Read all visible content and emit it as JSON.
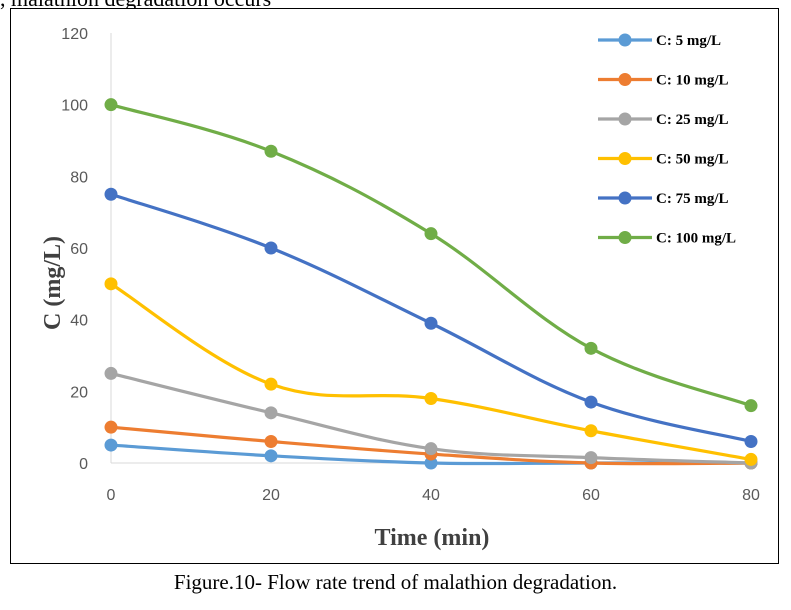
{
  "header_fragment": ", malathion degradation occurs",
  "caption": "Figure.10- Flow rate trend of malathion degradation.",
  "chart_data": {
    "type": "line",
    "title": "",
    "xlabel": "Time (min)",
    "ylabel": "C (mg/L)",
    "x": [
      0,
      20,
      40,
      60,
      80
    ],
    "xlim": [
      0,
      80
    ],
    "ylim": [
      0,
      120
    ],
    "x_ticks": [
      "0",
      "20",
      "40",
      "60",
      "80"
    ],
    "y_ticks": [
      "0",
      "20",
      "40",
      "60",
      "80",
      "100",
      "120"
    ],
    "grid": false,
    "legend_position": "top-right",
    "series": [
      {
        "name": "C: 5 mg/L",
        "color": "#5B9BD5",
        "values": [
          5,
          2,
          0,
          0,
          0
        ]
      },
      {
        "name": "C: 10 mg/L",
        "color": "#ED7D31",
        "values": [
          10,
          6,
          2.5,
          0,
          0
        ]
      },
      {
        "name": "C: 25 mg/L",
        "color": "#A5A5A5",
        "values": [
          25,
          14,
          4,
          1.5,
          0
        ]
      },
      {
        "name": "C: 50 mg/L",
        "color": "#FFC000",
        "values": [
          50,
          22,
          18,
          9,
          1
        ]
      },
      {
        "name": "C: 75 mg/L",
        "color": "#4472C4",
        "values": [
          75,
          60,
          39,
          17,
          6
        ]
      },
      {
        "name": "C: 100 mg/L",
        "color": "#70AD47",
        "values": [
          100,
          87,
          64,
          32,
          16
        ]
      }
    ]
  }
}
